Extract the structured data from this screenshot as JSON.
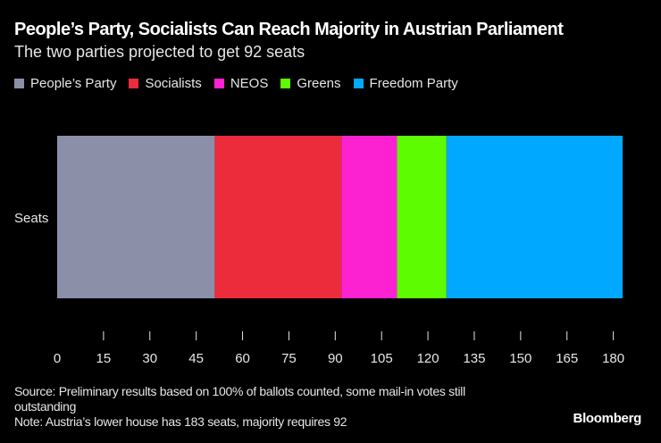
{
  "chart_data": {
    "type": "bar",
    "orientation": "horizontal",
    "stacked": true,
    "title": "People’s Party, Socialists Can Reach Majority in Austrian Parliament",
    "subtitle": "The two parties projected to get 92 seats",
    "categories": [
      "Seats"
    ],
    "series": [
      {
        "name": "People’s Party",
        "values": [
          51
        ],
        "color": "#8b8fa8"
      },
      {
        "name": "Socialists",
        "values": [
          41
        ],
        "color": "#ec2b3b"
      },
      {
        "name": "NEOS",
        "values": [
          18
        ],
        "color": "#fc22d2"
      },
      {
        "name": "Greens",
        "values": [
          16
        ],
        "color": "#5efc00"
      },
      {
        "name": "Freedom Party",
        "values": [
          57
        ],
        "color": "#00a8ff"
      }
    ],
    "xlim": [
      0,
      183
    ],
    "xticks": [
      0,
      15,
      30,
      45,
      60,
      75,
      90,
      105,
      120,
      135,
      150,
      165,
      180
    ],
    "xlabel": "",
    "ylabel": "",
    "grid": false,
    "legend_position": "top-left"
  },
  "footer": {
    "source": "Source: Preliminary results based on 100% of ballots counted, some mail-in votes still outstanding",
    "note": "Note: Austria’s lower house has 183 seats, majority requires 92"
  },
  "brand": "Bloomberg"
}
